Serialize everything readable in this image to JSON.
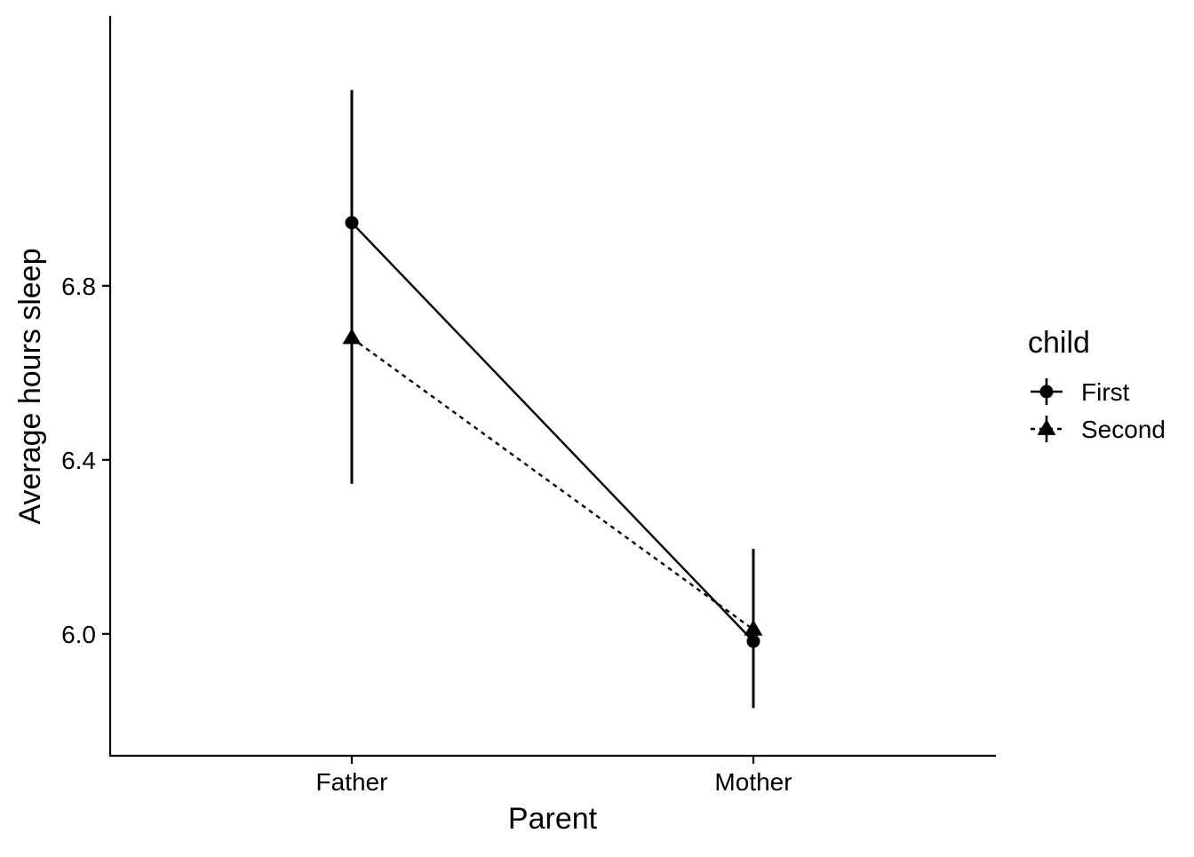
{
  "chart_data": {
    "type": "line",
    "categories": [
      "Father",
      "Mother"
    ],
    "xlabel": "Parent",
    "ylabel": "Average hours sleep",
    "ylim": [
      5.72,
      7.42
    ],
    "yticks": [
      6.0,
      6.4,
      6.8
    ],
    "ytick_labels": [
      "6.0",
      "6.4",
      "6.8"
    ],
    "grid": false,
    "legend": {
      "title": "child",
      "position": "right"
    },
    "series": [
      {
        "name": "First",
        "marker": "circle",
        "linestyle": "solid",
        "color": "#000000",
        "values": [
          6.945,
          5.983
        ],
        "error_low": [
          6.345,
          5.83
        ],
        "error_high": [
          7.25,
          6.195
        ]
      },
      {
        "name": "Second",
        "marker": "triangle",
        "linestyle": "dashed",
        "color": "#000000",
        "values": [
          6.68,
          6.01
        ],
        "error_low": [
          6.49,
          5.83
        ],
        "error_high": [
          6.87,
          6.195
        ]
      }
    ]
  }
}
